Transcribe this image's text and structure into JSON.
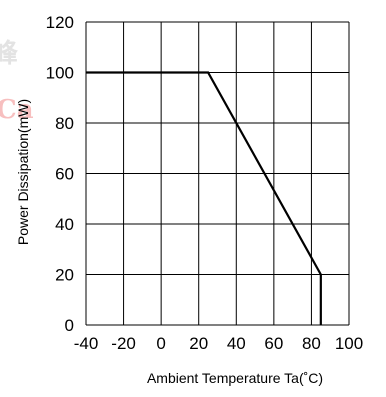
{
  "chart_data": {
    "type": "line",
    "title": "",
    "xlabel": "Ambient Temperature  Ta(˚C)",
    "ylabel": "Power Dissipation(mW)",
    "xlim": [
      -40,
      100
    ],
    "ylim": [
      0,
      120
    ],
    "x_ticks": [
      -40,
      -20,
      0,
      20,
      40,
      60,
      80,
      100
    ],
    "y_ticks": [
      0,
      20,
      40,
      60,
      80,
      100,
      120
    ],
    "grid": true,
    "legend": "none",
    "line_color": "#000000",
    "series": [
      {
        "x": [
          -40,
          25,
          85,
          85
        ],
        "y": [
          100,
          100,
          20,
          0
        ]
      }
    ]
  }
}
